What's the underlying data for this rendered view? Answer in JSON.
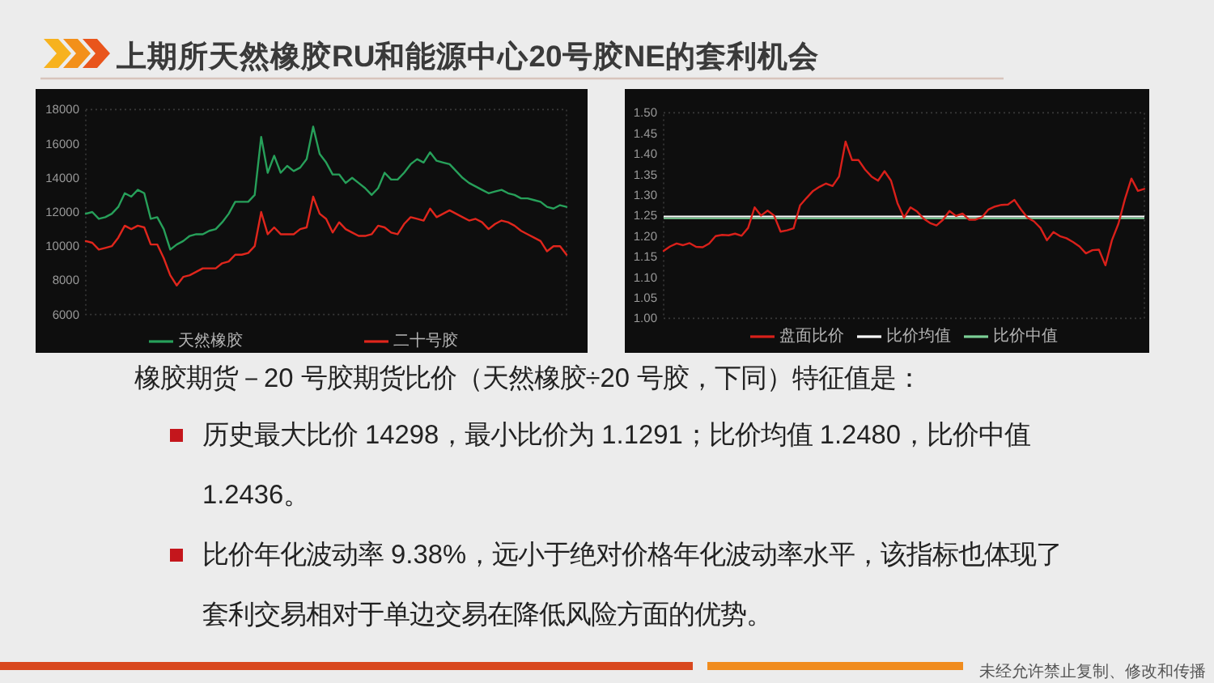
{
  "chart_data": [
    {
      "type": "other",
      "title": "上期所天然橡胶RU和能源中心20号胶NE的套利机会"
    },
    {
      "type": "line",
      "categories": [
        null,
        null,
        null,
        null,
        null,
        null,
        null,
        null,
        null,
        null,
        null,
        null,
        null,
        null,
        null,
        null,
        null,
        null,
        null,
        null,
        null,
        null,
        null,
        null,
        null,
        null,
        null,
        null,
        null,
        null,
        null,
        null,
        null,
        null,
        null,
        null,
        null,
        null,
        null,
        null,
        null,
        null,
        null,
        null,
        null,
        null,
        null,
        null,
        null,
        null,
        null,
        null,
        null,
        null,
        null,
        null,
        null,
        null,
        null,
        null,
        null,
        null,
        null,
        null,
        null,
        null,
        null,
        null,
        null,
        null,
        null,
        null,
        null,
        null,
        null
      ],
      "series": [
        {
          "name": "天然橡胶",
          "color": "#27a05a",
          "values": [
            11900,
            12000,
            11600,
            11700,
            11900,
            12300,
            13100,
            12900,
            13300,
            13100,
            11600,
            11700,
            11000,
            9800,
            10100,
            10300,
            10600,
            10700,
            10700,
            10900,
            11000,
            11400,
            11900,
            12600,
            12600,
            12600,
            13000,
            16400,
            14300,
            15300,
            14300,
            14700,
            14400,
            14600,
            15100,
            17000,
            15400,
            14900,
            14200,
            14200,
            13700,
            14000,
            13700,
            13400,
            13000,
            13400,
            14300,
            13900,
            13900,
            14300,
            14800,
            15100,
            14900,
            15500,
            15000,
            14900,
            14800,
            14400,
            14000,
            13700,
            13500,
            13300,
            13100,
            13200,
            13300,
            13100,
            13000,
            12800,
            12800,
            12700,
            12600,
            12300,
            12200,
            12400,
            12300
          ]
        },
        {
          "name": "二十号胶",
          "color": "#e0261c",
          "values": [
            10300,
            10200,
            9800,
            9900,
            10000,
            10500,
            11200,
            11000,
            11200,
            11100,
            10100,
            10100,
            9300,
            8300,
            7700,
            8200,
            8300,
            8500,
            8700,
            8700,
            8700,
            9000,
            9100,
            9500,
            9500,
            9600,
            10000,
            12000,
            10700,
            11100,
            10700,
            10700,
            10700,
            11000,
            11100,
            12900,
            11900,
            11600,
            10800,
            11400,
            11000,
            10800,
            10600,
            10600,
            10700,
            11200,
            11100,
            10800,
            10700,
            11300,
            11700,
            11600,
            11500,
            12200,
            11700,
            11900,
            12100,
            11900,
            11700,
            11500,
            11600,
            11400,
            11000,
            11300,
            11500,
            11400,
            11200,
            10900,
            10700,
            10500,
            10300,
            9700,
            10000,
            10000,
            9500
          ]
        }
      ],
      "ylim": [
        6000,
        18000
      ],
      "yticks": [
        6000,
        8000,
        10000,
        12000,
        14000,
        16000,
        18000
      ],
      "legend": "bottom"
    },
    {
      "type": "line",
      "categories": [
        null,
        null,
        null,
        null,
        null,
        null,
        null,
        null,
        null,
        null,
        null,
        null,
        null,
        null,
        null,
        null,
        null,
        null,
        null,
        null,
        null,
        null,
        null,
        null,
        null,
        null,
        null,
        null,
        null,
        null,
        null,
        null,
        null,
        null,
        null,
        null,
        null,
        null,
        null,
        null,
        null,
        null,
        null,
        null,
        null,
        null,
        null,
        null,
        null,
        null,
        null,
        null,
        null,
        null,
        null,
        null,
        null,
        null,
        null,
        null,
        null,
        null,
        null,
        null,
        null,
        null,
        null,
        null,
        null,
        null,
        null,
        null,
        null,
        null,
        null
      ],
      "series": [
        {
          "name": "盘面比价",
          "color": "#d9201a",
          "values": [
            1.164,
            1.175,
            1.182,
            1.178,
            1.183,
            1.174,
            1.173,
            1.182,
            1.2,
            1.203,
            1.202,
            1.206,
            1.201,
            1.22,
            1.27,
            1.25,
            1.262,
            1.25,
            1.211,
            1.214,
            1.219,
            1.275,
            1.293,
            1.31,
            1.32,
            1.328,
            1.322,
            1.345,
            1.43,
            1.385,
            1.385,
            1.362,
            1.345,
            1.335,
            1.358,
            1.335,
            1.28,
            1.245,
            1.27,
            1.26,
            1.243,
            1.232,
            1.226,
            1.24,
            1.261,
            1.249,
            1.255,
            1.24,
            1.24,
            1.246,
            1.265,
            1.272,
            1.276,
            1.277,
            1.288,
            1.265,
            1.245,
            1.236,
            1.22,
            1.19,
            1.21,
            1.2,
            1.195,
            1.186,
            1.175,
            1.158,
            1.166,
            1.167,
            1.129,
            1.19,
            1.23,
            1.29,
            1.34,
            1.31,
            1.315
          ]
        }
      ],
      "ylim": [
        1.0,
        1.5
      ],
      "yticks": [
        {
          "value": 1.0,
          "label": "1.00"
        },
        {
          "value": 1.05,
          "label": "1.05"
        },
        {
          "value": 1.1,
          "label": "1.10"
        },
        {
          "value": 1.15,
          "label": "1.15"
        },
        {
          "value": 1.2,
          "label": "1.20"
        },
        {
          "value": 1.25,
          "label": "1.25"
        },
        {
          "value": 1.3,
          "label": "1.30"
        },
        {
          "value": 1.35,
          "label": "1.35"
        },
        {
          "value": 1.4,
          "label": "1.40"
        },
        {
          "value": 1.45,
          "label": "1.45"
        },
        {
          "value": 1.5,
          "label": "1.50"
        }
      ],
      "ref_lines": [
        {
          "axis": "y",
          "value": 1.2436,
          "label": "比价中值",
          "color": "#7ccf96"
        },
        {
          "axis": "y",
          "value": 1.248,
          "label": "比价均值",
          "color": "#ffffff"
        }
      ],
      "legend": "bottom"
    },
    {
      "type": "other",
      "annotations": [
        "橡胶期货－20 号胶期货比价（天然橡胶÷20 号胶，下同）特征值是：",
        "历史最大比价 14298，最小比价为 1.1291；比价均值 1.2480，比价中值 1.2436。",
        "比价年化波动率 9.38%，远小于绝对价格年化波动率水平，该指标也体现了套利交易相对于单边交易在降低风险方面的优势。",
        "未经允许禁止复制、修改和传播"
      ]
    }
  ]
}
